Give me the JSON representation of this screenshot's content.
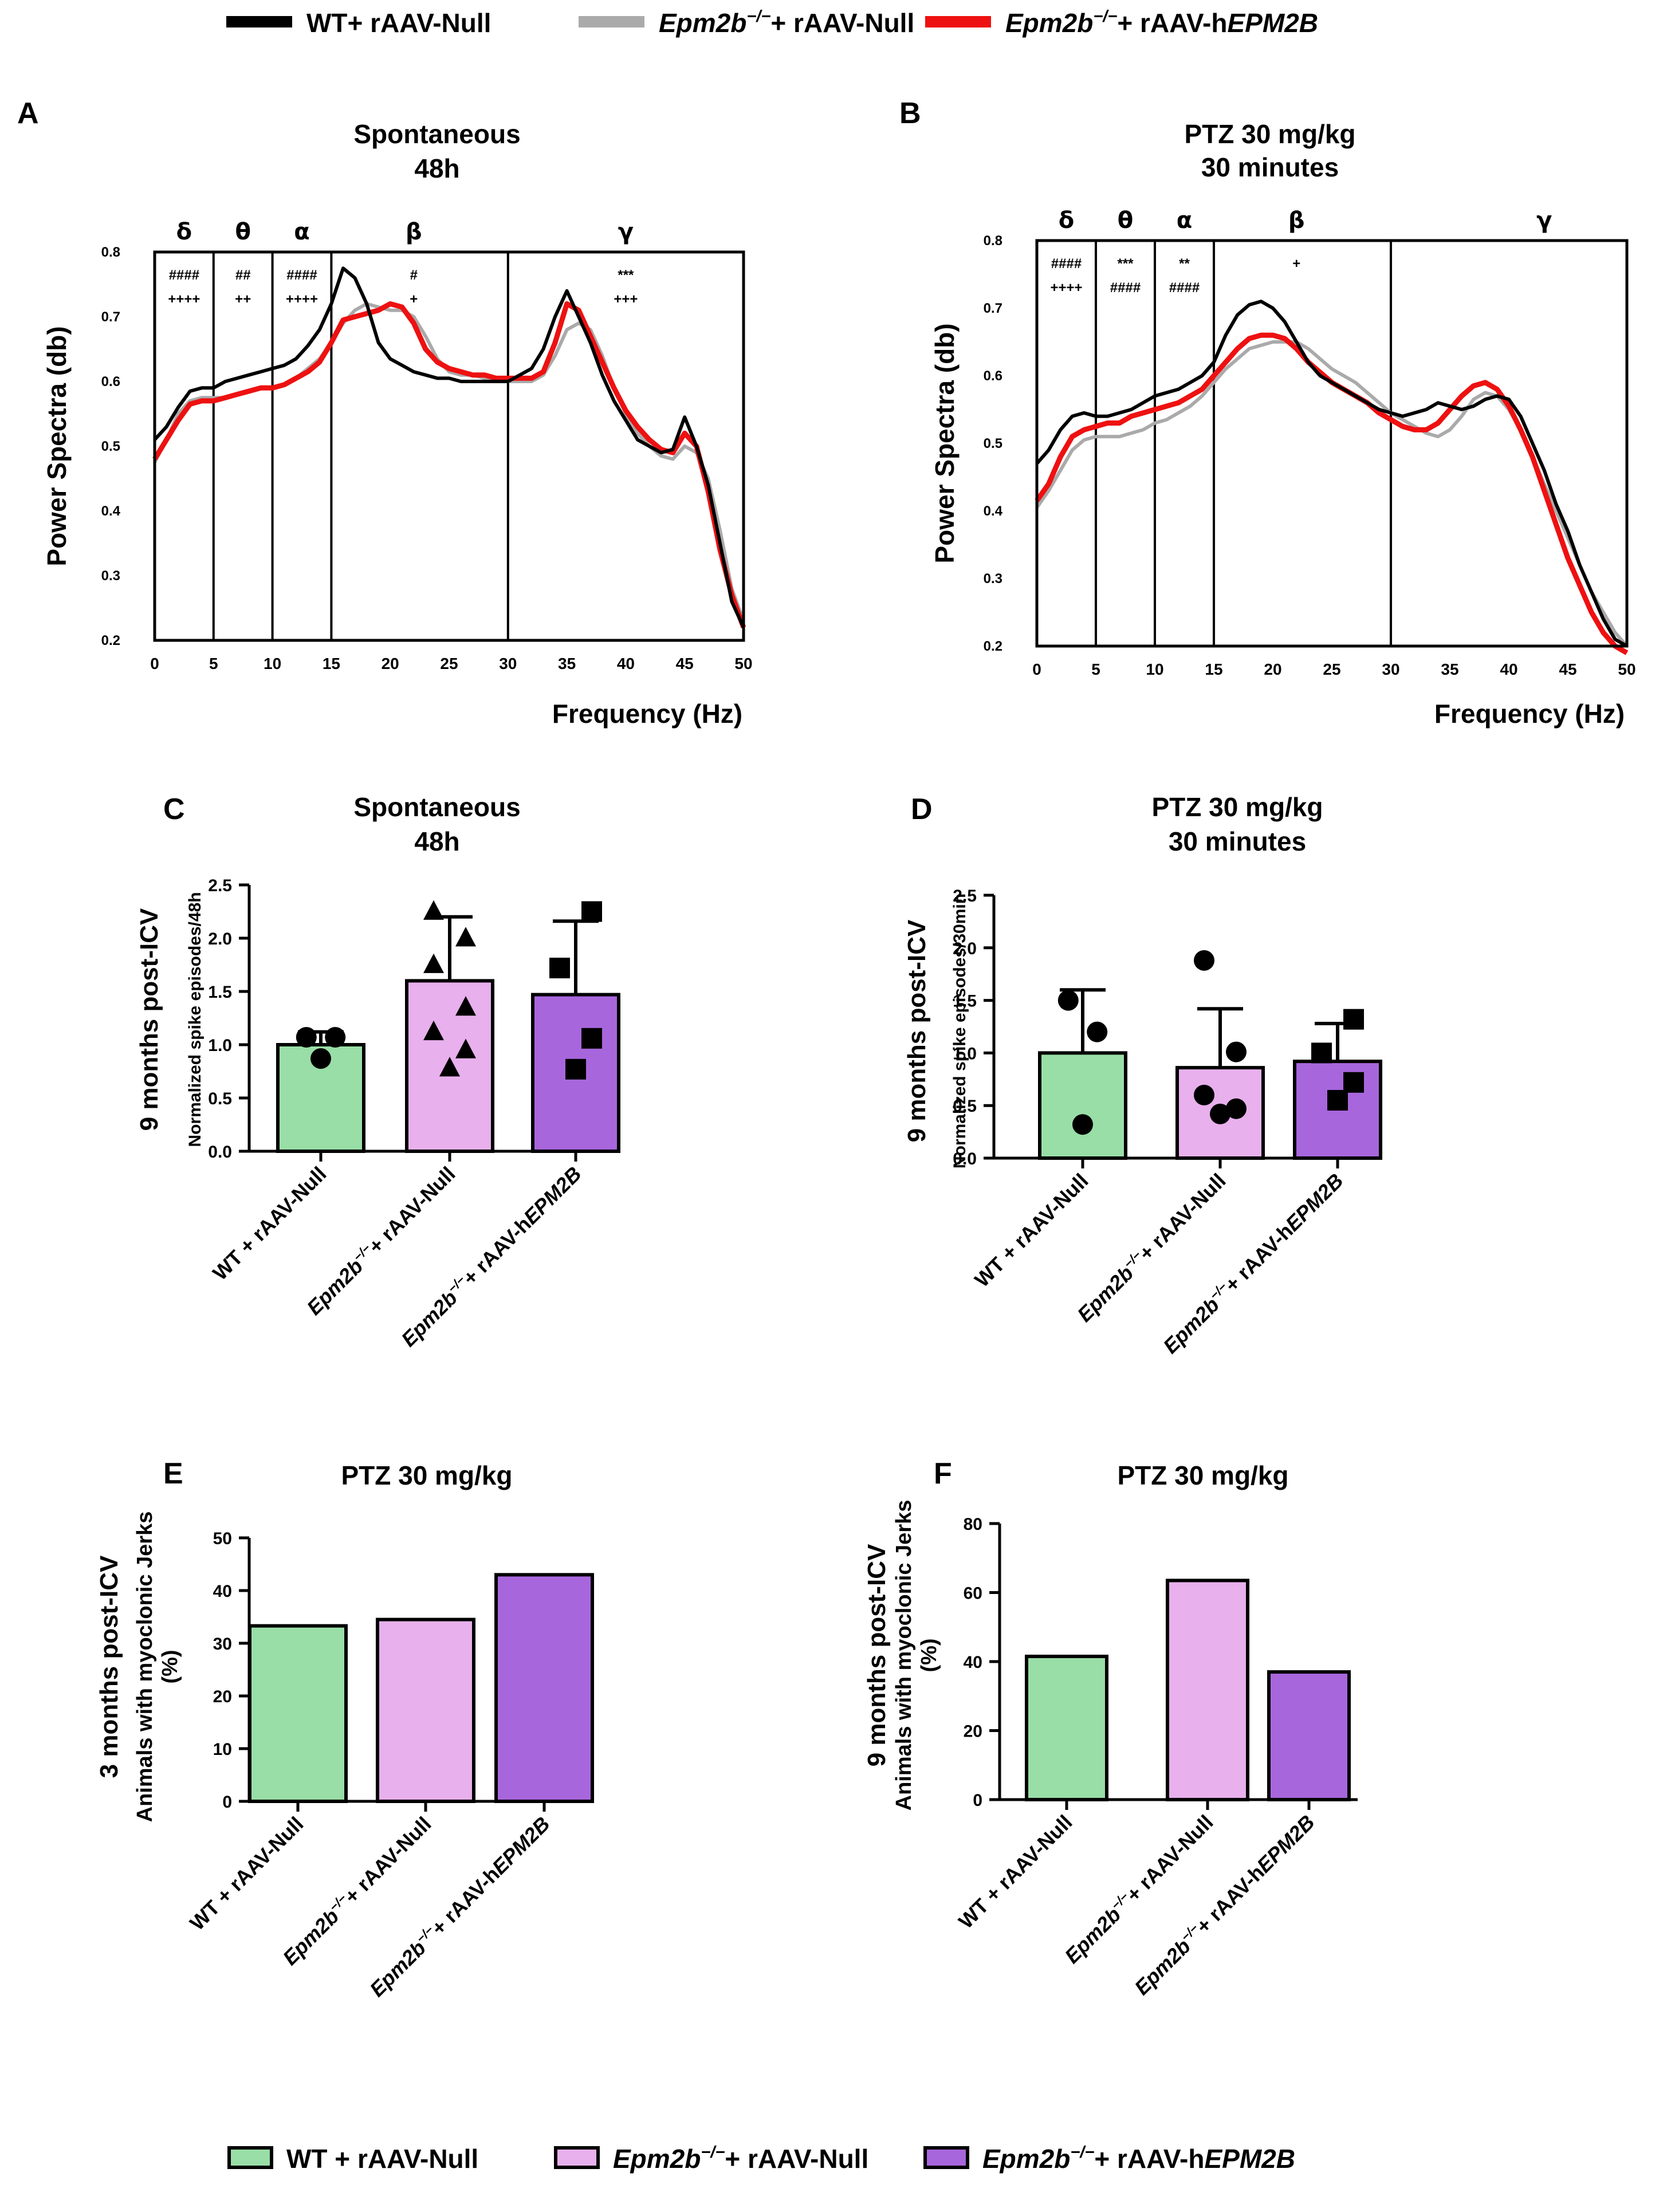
{
  "colors": {
    "wt": "#000000",
    "ko_null": "#aaaaaa",
    "ko_hepm2b": "#ee1111",
    "bar_wt": "#99dea6",
    "bar_ko_null": "#e8b0ec",
    "bar_ko_hepm2b": "#a866dc"
  },
  "top_legend": {
    "items": [
      {
        "label": "WT+ rAAV-Null",
        "color_key": "wt"
      },
      {
        "italic": "Epm2b",
        "sup": "−/−",
        "rest": "+ rAAV-Null",
        "color_key": "ko_null"
      },
      {
        "italic": "Epm2b",
        "sup": "−/−",
        "rest": "+ rAAV-h",
        "italic2": "EPM2B",
        "color_key": "ko_hepm2b"
      }
    ]
  },
  "bottom_legend": {
    "items": [
      {
        "label": "WT + rAAV-Null",
        "color_key": "bar_wt"
      },
      {
        "italic": "Epm2b",
        "sup": "−/−",
        "rest": "+ rAAV-Null",
        "color_key": "bar_ko_null"
      },
      {
        "italic": "Epm2b",
        "sup": "−/−",
        "rest": "+ rAAV-h",
        "italic2": "EPM2B",
        "color_key": "bar_ko_hepm2b"
      }
    ]
  },
  "category_labels": [
    {
      "text": "WT + rAAV-Null"
    },
    {
      "italic": "Epm2b",
      "sup": "−/−",
      "rest": "+ rAAV-Null"
    },
    {
      "italic": "Epm2b",
      "sup": "−/−",
      "rest": "+ rAAV-h",
      "italic2": "EPM2B"
    }
  ],
  "chart_data": [
    {
      "panel": "A",
      "type": "line",
      "title": [
        "Spontaneous",
        "48h"
      ],
      "xlabel": "Frequency (Hz)",
      "ylabel": "Power Spectra (db)",
      "xlim": [
        0,
        50
      ],
      "ylim": [
        0.2,
        0.8
      ],
      "xticks": [
        0,
        5,
        10,
        15,
        20,
        25,
        30,
        35,
        40,
        45,
        50
      ],
      "yticks": [
        "0.2",
        "0.3",
        "0.4",
        "0.5",
        "0.6",
        "0.7",
        "0.8"
      ],
      "band_bounds": [
        5,
        10,
        15,
        30
      ],
      "bands": [
        {
          "symbol": "δ",
          "center": 2.5,
          "stats": [
            "####",
            "++++"
          ]
        },
        {
          "symbol": "θ",
          "center": 7.5,
          "stats": [
            "##",
            "++"
          ]
        },
        {
          "symbol": "α",
          "center": 12.5,
          "stats": [
            "####",
            "++++"
          ]
        },
        {
          "symbol": "β",
          "center": 22,
          "stats": [
            "#",
            "+"
          ]
        },
        {
          "symbol": "γ",
          "center": 40,
          "stats": [
            "***",
            "+++"
          ]
        }
      ],
      "x": [
        0,
        1,
        2,
        3,
        4,
        5,
        6,
        7,
        8,
        9,
        10,
        11,
        12,
        13,
        14,
        15,
        16,
        17,
        18,
        19,
        20,
        21,
        22,
        23,
        24,
        25,
        26,
        27,
        28,
        29,
        30,
        31,
        32,
        33,
        34,
        35,
        36,
        37,
        38,
        39,
        40,
        41,
        42,
        43,
        44,
        45,
        46,
        47,
        48,
        49,
        50
      ],
      "series": [
        {
          "name": "WT+ rAAV-Null",
          "color_key": "wt",
          "values": [
            0.51,
            0.53,
            0.56,
            0.585,
            0.59,
            0.59,
            0.6,
            0.605,
            0.61,
            0.615,
            0.62,
            0.625,
            0.635,
            0.655,
            0.68,
            0.72,
            0.775,
            0.76,
            0.72,
            0.66,
            0.635,
            0.625,
            0.615,
            0.61,
            0.605,
            0.605,
            0.6,
            0.6,
            0.6,
            0.6,
            0.6,
            0.61,
            0.62,
            0.65,
            0.7,
            0.74,
            0.7,
            0.66,
            0.61,
            0.57,
            0.54,
            0.51,
            0.5,
            0.49,
            0.495,
            0.545,
            0.5,
            0.44,
            0.35,
            0.26,
            0.22
          ]
        },
        {
          "name": "Epm2b−/− + rAAV-Null",
          "color_key": "ko_null",
          "values": [
            0.475,
            0.51,
            0.55,
            0.57,
            0.575,
            0.575,
            0.575,
            0.58,
            0.585,
            0.59,
            0.59,
            0.595,
            0.605,
            0.62,
            0.635,
            0.66,
            0.69,
            0.71,
            0.72,
            0.715,
            0.71,
            0.71,
            0.7,
            0.67,
            0.635,
            0.615,
            0.61,
            0.61,
            0.605,
            0.6,
            0.6,
            0.6,
            0.6,
            0.61,
            0.64,
            0.68,
            0.69,
            0.68,
            0.64,
            0.59,
            0.55,
            0.52,
            0.5,
            0.485,
            0.48,
            0.5,
            0.49,
            0.45,
            0.37,
            0.28,
            0.23
          ]
        },
        {
          "name": "Epm2b−/− + rAAV-hEPM2B",
          "color_key": "ko_hepm2b",
          "values": [
            0.48,
            0.51,
            0.54,
            0.565,
            0.57,
            0.57,
            0.575,
            0.58,
            0.585,
            0.59,
            0.59,
            0.595,
            0.605,
            0.615,
            0.63,
            0.66,
            0.695,
            0.7,
            0.705,
            0.71,
            0.72,
            0.715,
            0.69,
            0.65,
            0.63,
            0.62,
            0.615,
            0.61,
            0.61,
            0.605,
            0.605,
            0.605,
            0.605,
            0.615,
            0.66,
            0.72,
            0.71,
            0.67,
            0.63,
            0.59,
            0.555,
            0.53,
            0.51,
            0.495,
            0.49,
            0.52,
            0.5,
            0.43,
            0.34,
            0.27,
            0.22
          ]
        }
      ]
    },
    {
      "panel": "B",
      "type": "line",
      "title": [
        "PTZ 30 mg/kg",
        "30 minutes"
      ],
      "xlabel": "Frequency (Hz)",
      "ylabel": "Power Spectra (db)",
      "xlim": [
        0,
        50
      ],
      "ylim": [
        0.2,
        0.8
      ],
      "xticks": [
        0,
        5,
        10,
        15,
        20,
        25,
        30,
        35,
        40,
        45,
        50
      ],
      "yticks": [
        "0.2",
        "0.3",
        "0.4",
        "0.5",
        "0.6",
        "0.7",
        "0.8"
      ],
      "band_bounds": [
        5,
        10,
        15,
        30
      ],
      "bands": [
        {
          "symbol": "δ",
          "center": 2.5,
          "stats": [
            "####",
            "++++"
          ]
        },
        {
          "symbol": "θ",
          "center": 7.5,
          "stats": [
            "***",
            "####"
          ]
        },
        {
          "symbol": "α",
          "center": 12.5,
          "stats": [
            "**",
            "####"
          ]
        },
        {
          "symbol": "β",
          "center": 22,
          "stats": [
            "+"
          ]
        },
        {
          "symbol": "γ",
          "center": 43,
          "stats": []
        }
      ],
      "x": [
        0,
        1,
        2,
        3,
        4,
        5,
        6,
        7,
        8,
        9,
        10,
        11,
        12,
        13,
        14,
        15,
        16,
        17,
        18,
        19,
        20,
        21,
        22,
        23,
        24,
        25,
        26,
        27,
        28,
        29,
        30,
        31,
        32,
        33,
        34,
        35,
        36,
        37,
        38,
        39,
        40,
        41,
        42,
        43,
        44,
        45,
        46,
        47,
        48,
        49,
        50
      ],
      "series": [
        {
          "name": "WT+ rAAV-Null",
          "color_key": "wt",
          "values": [
            0.47,
            0.49,
            0.52,
            0.54,
            0.545,
            0.54,
            0.54,
            0.545,
            0.55,
            0.56,
            0.57,
            0.575,
            0.58,
            0.59,
            0.6,
            0.62,
            0.66,
            0.69,
            0.705,
            0.71,
            0.7,
            0.68,
            0.65,
            0.62,
            0.6,
            0.59,
            0.58,
            0.57,
            0.56,
            0.55,
            0.545,
            0.54,
            0.545,
            0.55,
            0.56,
            0.555,
            0.55,
            0.555,
            0.565,
            0.57,
            0.565,
            0.54,
            0.5,
            0.46,
            0.41,
            0.37,
            0.32,
            0.28,
            0.24,
            0.21,
            0.2
          ]
        },
        {
          "name": "Epm2b−/− + rAAV-Null",
          "color_key": "ko_null",
          "values": [
            0.405,
            0.43,
            0.46,
            0.49,
            0.505,
            0.51,
            0.51,
            0.51,
            0.515,
            0.52,
            0.53,
            0.535,
            0.545,
            0.555,
            0.57,
            0.59,
            0.61,
            0.625,
            0.64,
            0.645,
            0.65,
            0.65,
            0.65,
            0.64,
            0.625,
            0.61,
            0.6,
            0.59,
            0.575,
            0.56,
            0.545,
            0.535,
            0.525,
            0.515,
            0.51,
            0.52,
            0.54,
            0.565,
            0.575,
            0.57,
            0.55,
            0.52,
            0.48,
            0.44,
            0.4,
            0.36,
            0.32,
            0.28,
            0.25,
            0.22,
            0.2
          ]
        },
        {
          "name": "Epm2b−/− + rAAV-hEPM2B",
          "color_key": "ko_hepm2b",
          "values": [
            0.415,
            0.44,
            0.48,
            0.51,
            0.52,
            0.525,
            0.53,
            0.53,
            0.54,
            0.545,
            0.55,
            0.555,
            0.56,
            0.57,
            0.58,
            0.6,
            0.62,
            0.64,
            0.655,
            0.66,
            0.66,
            0.655,
            0.64,
            0.62,
            0.605,
            0.59,
            0.58,
            0.57,
            0.56,
            0.545,
            0.535,
            0.525,
            0.52,
            0.52,
            0.53,
            0.55,
            0.57,
            0.585,
            0.59,
            0.58,
            0.555,
            0.52,
            0.48,
            0.43,
            0.38,
            0.33,
            0.29,
            0.25,
            0.22,
            0.2,
            0.19
          ]
        }
      ]
    },
    {
      "panel": "C",
      "type": "bar",
      "title": [
        "Spontaneous",
        "48h"
      ],
      "ylabel_outer": "9 months post-ICV",
      "ylabel": "Normalized spike episodes/48h",
      "ylim": [
        0,
        2.5
      ],
      "yticks": [
        "0.0",
        "0.5",
        "1.0",
        "1.5",
        "2.0",
        "2.5"
      ],
      "markers": [
        "circle",
        "triangle",
        "square"
      ],
      "values": [
        1.0,
        1.6,
        1.47
      ],
      "errors": [
        0.12,
        0.6,
        0.69
      ],
      "points": [
        [
          0.87,
          1.07,
          1.07
        ],
        [
          0.78,
          0.95,
          1.12,
          1.35,
          1.75,
          2.0,
          2.25
        ],
        [
          0.77,
          1.06,
          1.72,
          2.25
        ]
      ]
    },
    {
      "panel": "D",
      "type": "bar",
      "title": [
        "PTZ 30 mg/kg",
        "30 minutes"
      ],
      "ylabel_outer": "9 months post-ICV",
      "ylabel": "Normalized spike episodes/30min",
      "ylim": [
        0,
        2.5
      ],
      "yticks": [
        "0.0",
        "0.5",
        "1.0",
        "1.5",
        "2.0",
        "2.5"
      ],
      "markers": [
        "circle",
        "circle",
        "square"
      ],
      "values": [
        1.0,
        0.86,
        0.92
      ],
      "errors": [
        0.6,
        0.56,
        0.36
      ],
      "points": [
        [
          0.32,
          1.2,
          1.5
        ],
        [
          0.42,
          0.47,
          0.6,
          1.01,
          1.88
        ],
        [
          0.55,
          0.72,
          1.0,
          1.32
        ]
      ]
    },
    {
      "panel": "E",
      "type": "bar",
      "title": [
        "PTZ 30 mg/kg"
      ],
      "ylabel_outer": "3 months post-ICV",
      "ylabel": "Animals with myoclonic Jerks (%)",
      "ylim": [
        0,
        50
      ],
      "yticks": [
        "0",
        "10",
        "20",
        "30",
        "40",
        "50"
      ],
      "values": [
        33.3,
        34.5,
        43.0
      ]
    },
    {
      "panel": "F",
      "type": "bar",
      "title": [
        "PTZ 30 mg/kg"
      ],
      "ylabel_outer": "9 months post-ICV",
      "ylabel": "Animals with myoclonic Jerks (%)",
      "ylim": [
        0,
        80
      ],
      "yticks": [
        "0",
        "20",
        "40",
        "60",
        "80"
      ],
      "values": [
        41.5,
        63.5,
        37.0
      ]
    }
  ]
}
